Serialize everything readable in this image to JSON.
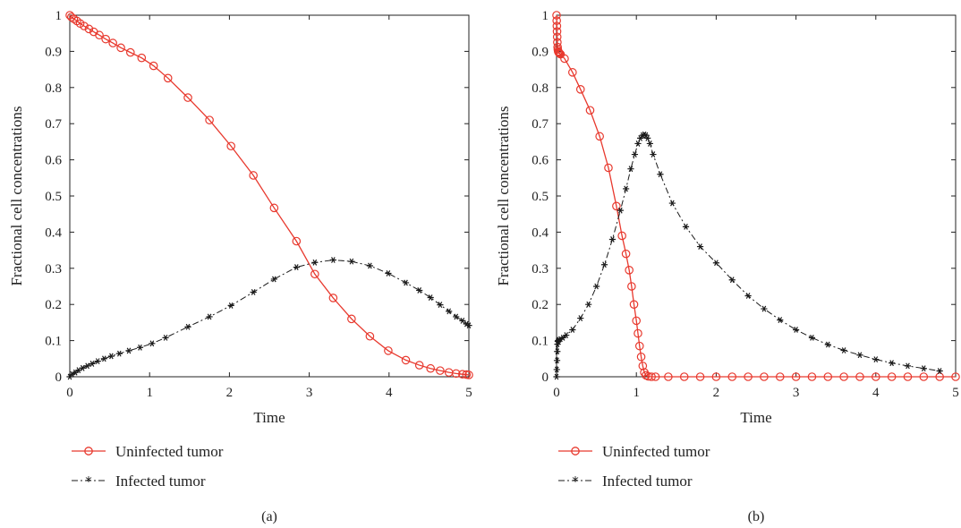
{
  "chart_data": [
    {
      "type": "line",
      "caption": "(a)",
      "xlabel": "Time",
      "ylabel": "Fractional cell concentrations",
      "xlim": [
        0,
        5
      ],
      "ylim": [
        0,
        1
      ],
      "xticks": [
        "0",
        "1",
        "2",
        "3",
        "4",
        "5"
      ],
      "yticks": [
        "0",
        "0.1",
        "0.2",
        "0.3",
        "0.4",
        "0.5",
        "0.6",
        "0.7",
        "0.8",
        "0.9",
        "1"
      ],
      "legend": {
        "placement": "below-axes"
      },
      "series": [
        {
          "name": "Uninfected tumor",
          "color": "#e8392e",
          "line_style": "solid",
          "marker": "circle",
          "x": [
            0,
            0.02,
            0.05,
            0.09,
            0.13,
            0.18,
            0.24,
            0.3,
            0.37,
            0.45,
            0.54,
            0.64,
            0.76,
            0.9,
            1.05,
            1.23,
            1.48,
            1.75,
            2.02,
            2.3,
            2.56,
            2.84,
            3.07,
            3.3,
            3.53,
            3.76,
            3.99,
            4.21,
            4.38,
            4.52,
            4.64,
            4.75,
            4.84,
            4.92,
            4.97,
            5.0
          ],
          "y": [
            1.0,
            0.995,
            0.99,
            0.984,
            0.977,
            0.97,
            0.962,
            0.954,
            0.945,
            0.934,
            0.923,
            0.91,
            0.897,
            0.882,
            0.86,
            0.826,
            0.772,
            0.71,
            0.638,
            0.557,
            0.467,
            0.375,
            0.284,
            0.218,
            0.16,
            0.112,
            0.072,
            0.046,
            0.032,
            0.023,
            0.017,
            0.012,
            0.009,
            0.007,
            0.006,
            0.005
          ]
        },
        {
          "name": "Infected tumor",
          "color": "#1a1a1a",
          "line_style": "dash-dot",
          "marker": "asterisk",
          "x": [
            0,
            0.03,
            0.07,
            0.11,
            0.16,
            0.22,
            0.28,
            0.35,
            0.43,
            0.52,
            0.62,
            0.74,
            0.88,
            1.03,
            1.2,
            1.48,
            1.75,
            2.02,
            2.3,
            2.56,
            2.84,
            3.07,
            3.3,
            3.53,
            3.76,
            3.99,
            4.21,
            4.38,
            4.52,
            4.64,
            4.75,
            4.84,
            4.92,
            4.97,
            5.0
          ],
          "y": [
            0.0,
            0.007,
            0.012,
            0.018,
            0.024,
            0.03,
            0.036,
            0.043,
            0.05,
            0.057,
            0.064,
            0.072,
            0.081,
            0.092,
            0.108,
            0.138,
            0.166,
            0.197,
            0.234,
            0.27,
            0.303,
            0.316,
            0.323,
            0.319,
            0.307,
            0.286,
            0.26,
            0.239,
            0.219,
            0.199,
            0.181,
            0.166,
            0.155,
            0.146,
            0.142
          ]
        }
      ]
    },
    {
      "type": "line",
      "caption": "(b)",
      "xlabel": "Time",
      "ylabel": "Fractional cell concentrations",
      "xlim": [
        0,
        5
      ],
      "ylim": [
        0,
        1
      ],
      "xticks": [
        "0",
        "1",
        "2",
        "3",
        "4",
        "5"
      ],
      "yticks": [
        "0",
        "0.1",
        "0.2",
        "0.3",
        "0.4",
        "0.5",
        "0.6",
        "0.7",
        "0.8",
        "0.9",
        "1"
      ],
      "legend": {
        "placement": "below-axes"
      },
      "series": [
        {
          "name": "Uninfected tumor",
          "color": "#e8392e",
          "line_style": "solid",
          "marker": "circle",
          "x": [
            0,
            0.002,
            0.004,
            0.006,
            0.008,
            0.01,
            0.013,
            0.016,
            0.02,
            0.025,
            0.03,
            0.04,
            0.05,
            0.1,
            0.2,
            0.3,
            0.42,
            0.54,
            0.65,
            0.75,
            0.82,
            0.87,
            0.91,
            0.94,
            0.97,
            1.0,
            1.02,
            1.04,
            1.06,
            1.08,
            1.1,
            1.12,
            1.15,
            1.19,
            1.24,
            1.4,
            1.6,
            1.8,
            2.0,
            2.2,
            2.4,
            2.6,
            2.8,
            3.0,
            3.2,
            3.4,
            3.6,
            3.8,
            4.0,
            4.2,
            4.4,
            4.6,
            4.8,
            5.0
          ],
          "y": [
            1.0,
            0.985,
            0.97,
            0.955,
            0.94,
            0.925,
            0.912,
            0.905,
            0.9,
            0.898,
            0.896,
            0.894,
            0.892,
            0.88,
            0.842,
            0.795,
            0.737,
            0.665,
            0.578,
            0.472,
            0.39,
            0.34,
            0.295,
            0.25,
            0.2,
            0.155,
            0.12,
            0.085,
            0.055,
            0.03,
            0.012,
            0.004,
            0.001,
            0.0,
            0.0,
            0.0,
            0.0,
            0.0,
            0.0,
            0.0,
            0.0,
            0.0,
            0.0,
            0.0,
            0.0,
            0.0,
            0.0,
            0.0,
            0.0,
            0.0,
            0.0,
            0.0,
            0.0,
            0.0
          ]
        },
        {
          "name": "Infected tumor",
          "color": "#1a1a1a",
          "line_style": "dash-dot",
          "marker": "asterisk",
          "x": [
            0,
            0.003,
            0.006,
            0.009,
            0.012,
            0.016,
            0.02,
            0.03,
            0.05,
            0.08,
            0.12,
            0.2,
            0.3,
            0.4,
            0.5,
            0.6,
            0.7,
            0.8,
            0.87,
            0.93,
            0.98,
            1.02,
            1.05,
            1.08,
            1.1,
            1.12,
            1.14,
            1.17,
            1.21,
            1.3,
            1.45,
            1.62,
            1.8,
            2.0,
            2.2,
            2.4,
            2.6,
            2.8,
            3.0,
            3.2,
            3.4,
            3.6,
            3.8,
            4.0,
            4.2,
            4.4,
            4.6,
            4.8
          ],
          "y": [
            0.0,
            0.02,
            0.045,
            0.07,
            0.09,
            0.098,
            0.1,
            0.102,
            0.104,
            0.108,
            0.115,
            0.13,
            0.162,
            0.2,
            0.25,
            0.31,
            0.38,
            0.46,
            0.52,
            0.575,
            0.615,
            0.645,
            0.66,
            0.668,
            0.67,
            0.668,
            0.66,
            0.645,
            0.615,
            0.56,
            0.48,
            0.415,
            0.36,
            0.315,
            0.268,
            0.224,
            0.188,
            0.157,
            0.13,
            0.108,
            0.089,
            0.073,
            0.06,
            0.048,
            0.038,
            0.03,
            0.023,
            0.016
          ]
        }
      ]
    }
  ]
}
